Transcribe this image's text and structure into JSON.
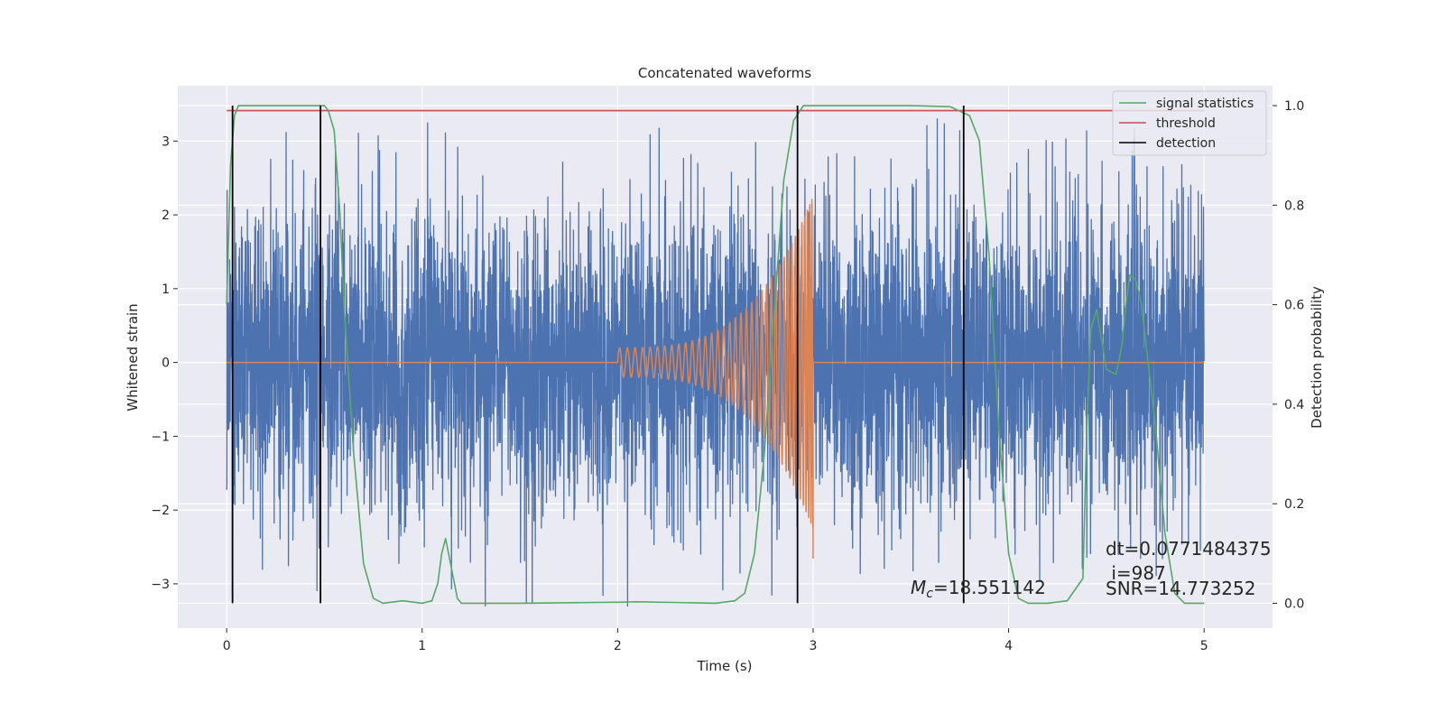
{
  "chart_data": {
    "type": "line",
    "title": "Concatenated waveforms",
    "xlabel": "Time (s)",
    "ylabel": "Whitened strain",
    "y2label": "Detection probability",
    "xlim": [
      -0.25,
      5.35
    ],
    "ylim": [
      -3.6,
      3.75
    ],
    "y2lim": [
      -0.05,
      1.04
    ],
    "grid": true,
    "legend_position": "top-right",
    "x_ticks": [
      0,
      1,
      2,
      3,
      4,
      5
    ],
    "x_tick_labels": [
      "0",
      "1",
      "2",
      "3",
      "4",
      "5"
    ],
    "y_ticks": [
      -3,
      -2,
      -1,
      0,
      1,
      2,
      3
    ],
    "y_tick_labels": [
      "−3",
      "−2",
      "−1",
      "0",
      "1",
      "2",
      "3"
    ],
    "y2_ticks": [
      0,
      0.2,
      0.4,
      0.6,
      0.8,
      1.0
    ],
    "y2_tick_labels": [
      "0.0",
      "0.2",
      "0.4",
      "0.6",
      "0.8",
      "1.0"
    ],
    "series": [
      {
        "name": "",
        "kind": "strain-noise",
        "color": "#4c72b0",
        "x_range": [
          0,
          5
        ],
        "amplitude_core": 0.65,
        "amplitude_peak": 3.3
      },
      {
        "name": "",
        "kind": "chirp-template",
        "color": "#dd8452",
        "x_range": [
          0,
          5
        ],
        "chirp_start": 2.0,
        "chirp_end": 3.0,
        "amplitude_start": 0.2,
        "amplitude_end": 2.25
      },
      {
        "name": "signal statistics",
        "axis": "right",
        "color": "#55a868",
        "x": [
          0,
          0.02,
          0.04,
          0.06,
          0.1,
          0.2,
          0.3,
          0.4,
          0.5,
          0.52,
          0.55,
          0.58,
          0.6,
          0.65,
          0.7,
          0.75,
          0.8,
          0.9,
          1.0,
          1.05,
          1.08,
          1.1,
          1.12,
          1.15,
          1.18,
          1.2,
          1.3,
          1.5,
          2.0,
          2.1,
          2.5,
          2.6,
          2.65,
          2.7,
          2.75,
          2.8,
          2.85,
          2.9,
          2.95,
          3.0,
          3.2,
          3.5,
          3.7,
          3.8,
          3.85,
          3.9,
          3.95,
          4.0,
          4.05,
          4.1,
          4.2,
          4.3,
          4.38,
          4.4,
          4.42,
          4.45,
          4.48,
          4.5,
          4.55,
          4.58,
          4.6,
          4.62,
          4.65,
          4.68,
          4.7,
          4.75,
          4.8,
          4.85,
          4.9,
          4.95,
          5.0
        ],
        "y": [
          0.6,
          0.88,
          0.98,
          1.0,
          1.0,
          1.0,
          1.0,
          1.0,
          1.0,
          0.99,
          0.95,
          0.78,
          0.6,
          0.3,
          0.08,
          0.01,
          0.0,
          0.005,
          0.0,
          0.005,
          0.04,
          0.1,
          0.13,
          0.07,
          0.01,
          0.0,
          0.0,
          0.0,
          0.002,
          0.003,
          0.0,
          0.005,
          0.02,
          0.1,
          0.3,
          0.58,
          0.85,
          0.97,
          1.0,
          1.0,
          1.0,
          1.0,
          0.998,
          0.98,
          0.93,
          0.7,
          0.35,
          0.1,
          0.01,
          0.0,
          0.0,
          0.005,
          0.05,
          0.35,
          0.55,
          0.59,
          0.52,
          0.47,
          0.46,
          0.52,
          0.6,
          0.66,
          0.65,
          0.6,
          0.53,
          0.36,
          0.14,
          0.02,
          0.0,
          0.0,
          0.0
        ]
      },
      {
        "name": "threshold",
        "axis": "right",
        "color": "#c44e52",
        "x": [
          0,
          5
        ],
        "y": [
          0.99,
          0.99
        ]
      },
      {
        "name": "detection",
        "color": "#000000",
        "x": [
          0.03,
          0.48,
          2.92,
          3.77
        ]
      }
    ],
    "annotations": {
      "dt": "dt=0.0771484375",
      "i": " i=987",
      "snr": "SNR=14.773252",
      "mc_symbol": "M",
      "mc_sub": "c",
      "mc_value": "=18.551142"
    }
  }
}
